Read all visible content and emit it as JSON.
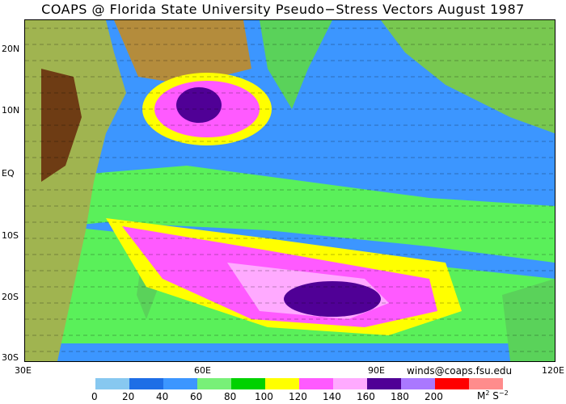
{
  "title": "COAPS @ Florida State University Pseudo−Stress Vectors  August 1987",
  "credit": "winds@coaps.fsu.edu",
  "lat_labels": [
    "20N",
    "10N",
    "EQ",
    "10S",
    "20S",
    "30S"
  ],
  "lon_labels": [
    "30E",
    "60E",
    "90E",
    "120E"
  ],
  "legend": {
    "ticks": [
      "0",
      "20",
      "40",
      "60",
      "80",
      "100",
      "120",
      "140",
      "160",
      "180",
      "200"
    ],
    "units_base": "M",
    "units_sup1": "2",
    "units_s": " S",
    "units_sup2": "−2",
    "colors": [
      "#87c8f0",
      "#1e6ee6",
      "#3c96ff",
      "#78f078",
      "#00d200",
      "#ffff00",
      "#ff5aff",
      "#ffaaff",
      "#500096",
      "#aa78ff",
      "#ff0000",
      "#ff8c8c"
    ]
  },
  "map_colors": {
    "ocean_background": "#3c96ff",
    "land_green": "#5ad25a",
    "land_dark": "#6e3c14",
    "land_brown": "#b48c3c",
    "land_olive": "#a0b450",
    "coast_gray": "#c8c8c8"
  }
}
